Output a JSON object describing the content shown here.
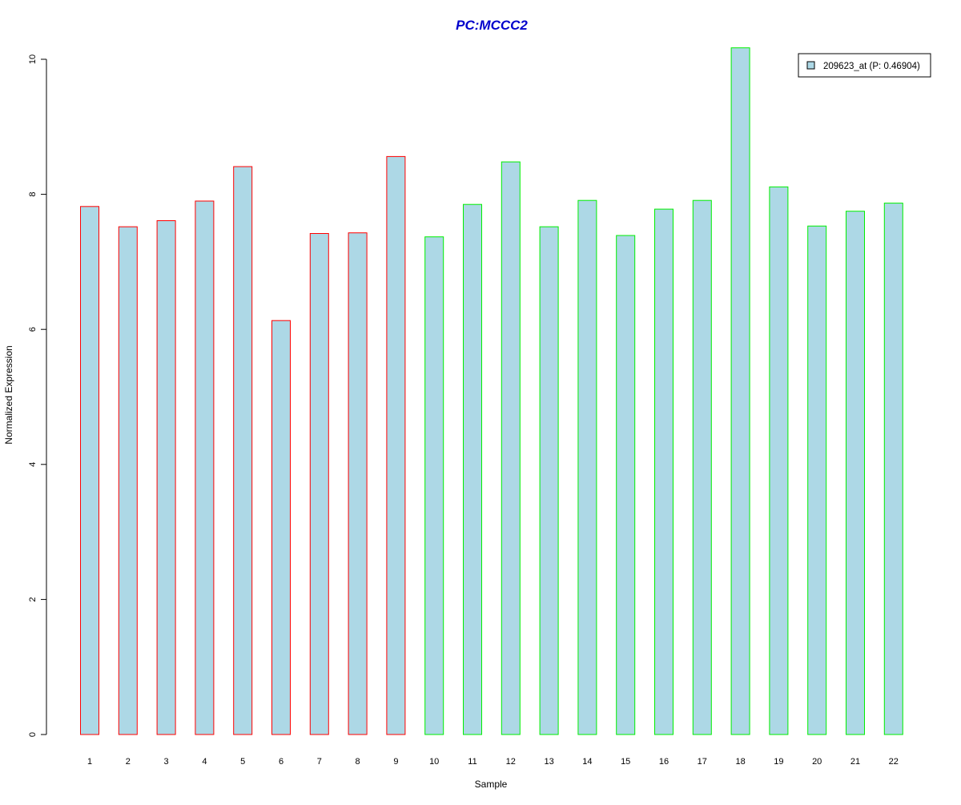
{
  "chart_data": {
    "type": "bar",
    "title": "PC:MCCC2",
    "xlabel": "Sample",
    "ylabel": "Normalized Expression",
    "categories": [
      "1",
      "2",
      "3",
      "4",
      "5",
      "6",
      "7",
      "8",
      "9",
      "10",
      "11",
      "12",
      "13",
      "14",
      "15",
      "16",
      "17",
      "18",
      "19",
      "20",
      "21",
      "22"
    ],
    "series": [
      {
        "name": "209623_at (P: 0.46904)",
        "values": [
          7.82,
          7.52,
          7.61,
          7.9,
          8.41,
          6.13,
          7.42,
          7.43,
          8.56,
          7.37,
          7.85,
          8.48,
          7.52,
          7.91,
          7.39,
          7.78,
          7.91,
          10.17,
          8.11,
          7.53,
          7.75,
          7.87
        ]
      }
    ],
    "ylim": [
      0,
      10.17
    ],
    "yticks": [
      "0",
      "2",
      "4",
      "6",
      "8",
      "10"
    ],
    "grid": false,
    "legend_position": "top-right",
    "colors": {
      "title": "#0000cc",
      "bar_fill": "#add8e6",
      "group_1_border": "#ff0000",
      "group_2_border": "#00ee00",
      "axis": "#000000"
    },
    "bar_groups": [
      "1",
      "1",
      "1",
      "1",
      "1",
      "1",
      "1",
      "1",
      "1",
      "2",
      "2",
      "2",
      "2",
      "2",
      "2",
      "2",
      "2",
      "2",
      "2",
      "2",
      "2",
      "2"
    ]
  }
}
